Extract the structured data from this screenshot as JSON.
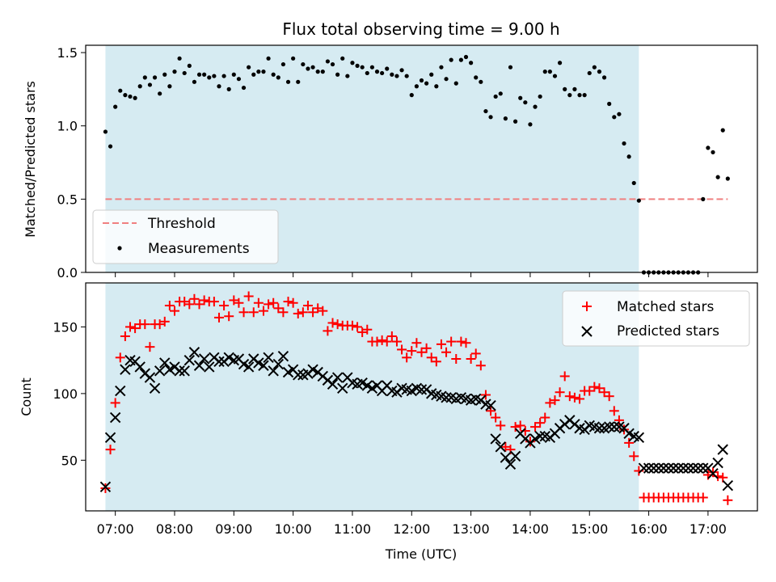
{
  "chart_data": [
    {
      "type": "scatter",
      "title": "Flux total observing time = 9.00 h",
      "xlabel": "",
      "ylabel": "Matched/Predicted stars",
      "ylim": [
        0,
        1.55
      ],
      "yticks": [
        "0.0",
        "0.5",
        "1.0",
        "1.5"
      ],
      "shaded_range": [
        "06:50",
        "15:50"
      ],
      "shade_color": "#add8e6",
      "threshold": {
        "name": "Threshold",
        "value": 0.5,
        "x_range": [
          "06:50",
          "17:20"
        ],
        "color": "#f08080"
      },
      "legend": {
        "position": "lower-left",
        "entries": [
          "Threshold",
          "Measurements"
        ]
      },
      "series": [
        {
          "name": "Measurements",
          "color": "#000000",
          "x": [
            "06:50",
            "06:55",
            "07:00",
            "07:05",
            "07:10",
            "07:15",
            "07:20",
            "07:25",
            "07:30",
            "07:35",
            "07:40",
            "07:45",
            "07:50",
            "07:55",
            "08:00",
            "08:05",
            "08:10",
            "08:15",
            "08:20",
            "08:25",
            "08:30",
            "08:35",
            "08:40",
            "08:45",
            "08:50",
            "08:55",
            "09:00",
            "09:05",
            "09:10",
            "09:15",
            "09:20",
            "09:25",
            "09:30",
            "09:35",
            "09:40",
            "09:45",
            "09:50",
            "09:55",
            "10:00",
            "10:05",
            "10:10",
            "10:15",
            "10:20",
            "10:25",
            "10:30",
            "10:35",
            "10:40",
            "10:45",
            "10:50",
            "10:55",
            "11:00",
            "11:05",
            "11:10",
            "11:15",
            "11:20",
            "11:25",
            "11:30",
            "11:35",
            "11:40",
            "11:45",
            "11:50",
            "11:55",
            "12:00",
            "12:05",
            "12:10",
            "12:15",
            "12:20",
            "12:25",
            "12:30",
            "12:35",
            "12:40",
            "12:45",
            "12:50",
            "12:55",
            "13:00",
            "13:05",
            "13:10",
            "13:15",
            "13:20",
            "13:25",
            "13:30",
            "13:35",
            "13:40",
            "13:45",
            "13:50",
            "13:55",
            "14:00",
            "14:05",
            "14:10",
            "14:15",
            "14:20",
            "14:25",
            "14:30",
            "14:35",
            "14:40",
            "14:45",
            "14:50",
            "14:55",
            "15:00",
            "15:05",
            "15:10",
            "15:15",
            "15:20",
            "15:25",
            "15:30",
            "15:35",
            "15:40",
            "15:45",
            "15:50",
            "15:55",
            "16:00",
            "16:05",
            "16:10",
            "16:15",
            "16:20",
            "16:25",
            "16:30",
            "16:35",
            "16:40",
            "16:45",
            "16:50",
            "16:55",
            "17:00",
            "17:05",
            "17:10",
            "17:15",
            "17:20"
          ],
          "y": [
            0.96,
            0.86,
            1.13,
            1.24,
            1.21,
            1.2,
            1.19,
            1.27,
            1.33,
            1.28,
            1.33,
            1.22,
            1.35,
            1.27,
            1.37,
            1.46,
            1.36,
            1.41,
            1.3,
            1.35,
            1.35,
            1.33,
            1.34,
            1.27,
            1.34,
            1.25,
            1.35,
            1.32,
            1.26,
            1.4,
            1.35,
            1.37,
            1.37,
            1.46,
            1.35,
            1.33,
            1.42,
            1.3,
            1.46,
            1.3,
            1.42,
            1.39,
            1.4,
            1.37,
            1.37,
            1.44,
            1.42,
            1.35,
            1.46,
            1.34,
            1.43,
            1.41,
            1.4,
            1.36,
            1.4,
            1.37,
            1.36,
            1.39,
            1.35,
            1.34,
            1.38,
            1.34,
            1.21,
            1.27,
            1.31,
            1.29,
            1.35,
            1.27,
            1.4,
            1.32,
            1.45,
            1.29,
            1.45,
            1.47,
            1.43,
            1.33,
            1.3,
            1.1,
            1.06,
            1.2,
            1.22,
            1.05,
            1.4,
            1.03,
            1.19,
            1.16,
            1.01,
            1.13,
            1.2,
            1.37,
            1.37,
            1.34,
            1.43,
            1.25,
            1.21,
            1.25,
            1.21,
            1.21,
            1.36,
            1.4,
            1.37,
            1.33,
            1.15,
            1.06,
            1.08,
            0.88,
            0.79,
            0.61,
            0.49,
            0.0,
            0.0,
            0.0,
            0.0,
            0.0,
            0.0,
            0.0,
            0.0,
            0.0,
            0.0,
            0.0,
            0.0,
            0.5,
            0.85,
            0.82,
            0.65,
            0.97,
            0.64
          ]
        }
      ]
    },
    {
      "type": "scatter",
      "title": "",
      "xlabel": "Time (UTC)",
      "ylabel": "Count",
      "ylim": [
        12,
        183
      ],
      "yticks": [
        "50",
        "100",
        "150"
      ],
      "xticks": [
        "07:00",
        "08:00",
        "09:00",
        "10:00",
        "11:00",
        "12:00",
        "13:00",
        "14:00",
        "15:00",
        "16:00",
        "17:00"
      ],
      "legend": {
        "position": "upper-right",
        "entries": [
          "Matched stars",
          "Predicted stars"
        ]
      },
      "series": [
        {
          "name": "Matched stars",
          "color": "#ff0000",
          "x": [
            "06:50",
            "06:55",
            "07:00",
            "07:05",
            "07:10",
            "07:15",
            "07:20",
            "07:25",
            "07:30",
            "07:35",
            "07:40",
            "07:45",
            "07:50",
            "07:55",
            "08:00",
            "08:05",
            "08:10",
            "08:15",
            "08:20",
            "08:25",
            "08:30",
            "08:35",
            "08:40",
            "08:45",
            "08:50",
            "08:55",
            "09:00",
            "09:05",
            "09:10",
            "09:15",
            "09:20",
            "09:25",
            "09:30",
            "09:35",
            "09:40",
            "09:45",
            "09:50",
            "09:55",
            "10:00",
            "10:05",
            "10:10",
            "10:15",
            "10:20",
            "10:25",
            "10:30",
            "10:35",
            "10:40",
            "10:45",
            "10:50",
            "10:55",
            "11:00",
            "11:05",
            "11:10",
            "11:15",
            "11:20",
            "11:25",
            "11:30",
            "11:35",
            "11:40",
            "11:45",
            "11:50",
            "11:55",
            "12:00",
            "12:05",
            "12:10",
            "12:15",
            "12:20",
            "12:25",
            "12:30",
            "12:35",
            "12:40",
            "12:45",
            "12:50",
            "12:55",
            "13:00",
            "13:05",
            "13:10",
            "13:15",
            "13:20",
            "13:25",
            "13:30",
            "13:35",
            "13:40",
            "13:45",
            "13:50",
            "13:55",
            "14:00",
            "14:05",
            "14:10",
            "14:15",
            "14:20",
            "14:25",
            "14:30",
            "14:35",
            "14:40",
            "14:45",
            "14:50",
            "14:55",
            "15:00",
            "15:05",
            "15:10",
            "15:15",
            "15:20",
            "15:25",
            "15:30",
            "15:35",
            "15:40",
            "15:45",
            "15:50",
            "15:55",
            "16:00",
            "16:05",
            "16:10",
            "16:15",
            "16:20",
            "16:25",
            "16:30",
            "16:35",
            "16:40",
            "16:45",
            "16:50",
            "16:55",
            "17:00",
            "17:05",
            "17:10",
            "17:15",
            "17:20"
          ],
          "y": [
            29,
            58,
            93,
            127,
            143,
            150,
            149,
            152,
            152,
            135,
            152,
            152,
            154,
            166,
            162,
            169,
            169,
            167,
            171,
            167,
            170,
            169,
            169,
            157,
            166,
            158,
            170,
            168,
            161,
            173,
            161,
            168,
            162,
            167,
            168,
            164,
            161,
            169,
            168,
            160,
            161,
            166,
            161,
            164,
            162,
            147,
            153,
            152,
            151,
            151,
            151,
            150,
            146,
            148,
            139,
            139,
            140,
            139,
            143,
            139,
            133,
            127,
            132,
            138,
            131,
            134,
            127,
            124,
            137,
            131,
            139,
            126,
            139,
            138,
            126,
            130,
            121,
            99,
            87,
            82,
            76,
            60,
            58,
            75,
            76,
            72,
            64,
            75,
            78,
            82,
            93,
            95,
            101,
            113,
            98,
            97,
            96,
            102,
            102,
            105,
            104,
            101,
            98,
            87,
            80,
            73,
            63,
            53,
            42,
            22,
            22,
            22,
            22,
            22,
            22,
            22,
            22,
            22,
            22,
            22,
            22,
            22,
            39,
            41,
            38,
            37,
            20
          ]
        },
        {
          "name": "Predicted stars",
          "color": "#000000",
          "x": [
            "06:50",
            "06:55",
            "07:00",
            "07:05",
            "07:10",
            "07:15",
            "07:20",
            "07:25",
            "07:30",
            "07:35",
            "07:40",
            "07:45",
            "07:50",
            "07:55",
            "08:00",
            "08:05",
            "08:10",
            "08:15",
            "08:20",
            "08:25",
            "08:30",
            "08:35",
            "08:40",
            "08:45",
            "08:50",
            "08:55",
            "09:00",
            "09:05",
            "09:10",
            "09:15",
            "09:20",
            "09:25",
            "09:30",
            "09:35",
            "09:40",
            "09:45",
            "09:50",
            "09:55",
            "10:00",
            "10:05",
            "10:10",
            "10:15",
            "10:20",
            "10:25",
            "10:30",
            "10:35",
            "10:40",
            "10:45",
            "10:50",
            "10:55",
            "11:00",
            "11:05",
            "11:10",
            "11:15",
            "11:20",
            "11:25",
            "11:30",
            "11:35",
            "11:40",
            "11:45",
            "11:50",
            "11:55",
            "12:00",
            "12:05",
            "12:10",
            "12:15",
            "12:20",
            "12:25",
            "12:30",
            "12:35",
            "12:40",
            "12:45",
            "12:50",
            "12:55",
            "13:00",
            "13:05",
            "13:10",
            "13:15",
            "13:20",
            "13:25",
            "13:30",
            "13:35",
            "13:40",
            "13:45",
            "13:50",
            "13:55",
            "14:00",
            "14:05",
            "14:10",
            "14:15",
            "14:20",
            "14:25",
            "14:30",
            "14:35",
            "14:40",
            "14:45",
            "14:50",
            "14:55",
            "15:00",
            "15:05",
            "15:10",
            "15:15",
            "15:20",
            "15:25",
            "15:30",
            "15:35",
            "15:40",
            "15:45",
            "15:50",
            "15:55",
            "16:00",
            "16:05",
            "16:10",
            "16:15",
            "16:20",
            "16:25",
            "16:30",
            "16:35",
            "16:40",
            "16:45",
            "16:50",
            "16:55",
            "17:00",
            "17:05",
            "17:10",
            "17:15",
            "17:20"
          ],
          "y": [
            30,
            67,
            82,
            102,
            118,
            125,
            124,
            120,
            115,
            112,
            104,
            117,
            123,
            118,
            120,
            117,
            117,
            125,
            131,
            121,
            126,
            120,
            127,
            124,
            124,
            127,
            125,
            126,
            122,
            120,
            126,
            123,
            121,
            127,
            117,
            122,
            128,
            116,
            118,
            114,
            114,
            115,
            118,
            116,
            113,
            110,
            107,
            112,
            104,
            112,
            108,
            107,
            108,
            106,
            104,
            106,
            102,
            106,
            102,
            101,
            104,
            103,
            102,
            104,
            103,
            103,
            100,
            99,
            98,
            97,
            97,
            96,
            97,
            96,
            95,
            96,
            95,
            92,
            91,
            66,
            60,
            52,
            47,
            53,
            70,
            66,
            63,
            66,
            68,
            68,
            67,
            70,
            74,
            77,
            80,
            77,
            74,
            73,
            76,
            75,
            74,
            74,
            75,
            75,
            75,
            74,
            70,
            68,
            67,
            44,
            44,
            44,
            44,
            44,
            44,
            44,
            44,
            44,
            44,
            44,
            44,
            44,
            44,
            40,
            48,
            58,
            31
          ]
        }
      ]
    }
  ]
}
